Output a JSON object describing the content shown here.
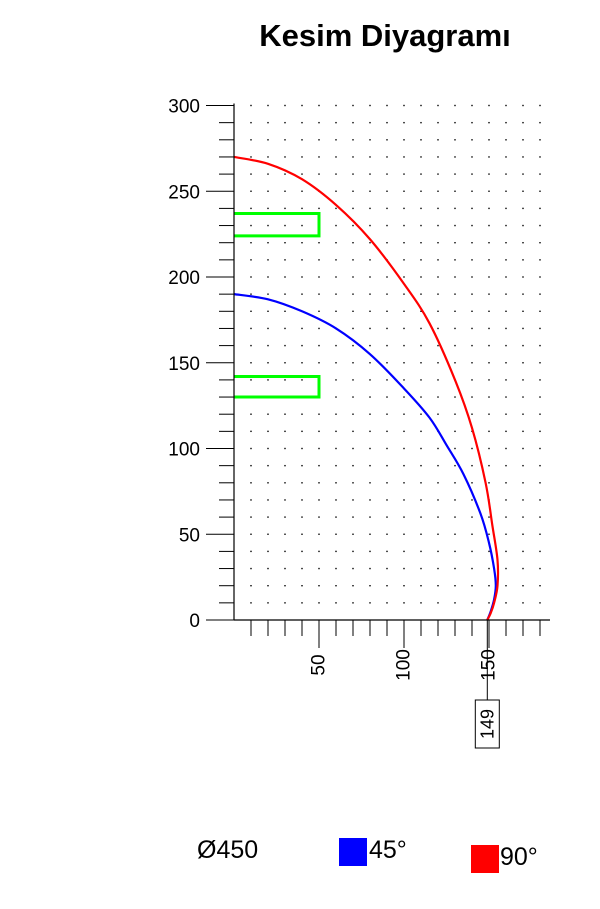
{
  "title": "Kesim Diyagramı",
  "chart_data": {
    "type": "line",
    "title": "Kesim Diyagramı",
    "xlabel": "",
    "ylabel": "",
    "xlim": [
      0,
      180
    ],
    "ylim": [
      0,
      300
    ],
    "x_ticks": [
      50,
      100,
      150
    ],
    "y_ticks": [
      0,
      50,
      100,
      150,
      200,
      250,
      300
    ],
    "grid": "dotted",
    "marker_label": "149",
    "marker_x": 149,
    "series": [
      {
        "name": "45°",
        "color": "#0000ff",
        "x": [
          0,
          20,
          40,
          60,
          80,
          100,
          115,
          125,
          135,
          145,
          150,
          153,
          154,
          153,
          151,
          149
        ],
        "y": [
          190,
          187,
          180,
          170,
          155,
          135,
          118,
          102,
          85,
          62,
          45,
          30,
          20,
          12,
          5,
          0
        ]
      },
      {
        "name": "90°",
        "color": "#ff0000",
        "x": [
          0,
          20,
          40,
          60,
          80,
          100,
          115,
          130,
          140,
          148,
          152,
          155,
          155,
          153,
          151,
          149
        ],
        "y": [
          270,
          266,
          257,
          242,
          222,
          196,
          173,
          140,
          112,
          80,
          55,
          35,
          20,
          10,
          4,
          0
        ]
      }
    ],
    "cut_outs": [
      {
        "x": [
          0,
          50
        ],
        "y": [
          224,
          237
        ],
        "color": "#00ff00"
      },
      {
        "x": [
          0,
          50
        ],
        "y": [
          130,
          142
        ],
        "color": "#00ff00"
      }
    ]
  },
  "legend": {
    "diameter": "Ø450",
    "items": [
      {
        "label": "45°",
        "color": "#0000ff"
      },
      {
        "label": "90°",
        "color": "#ff0000"
      }
    ]
  }
}
